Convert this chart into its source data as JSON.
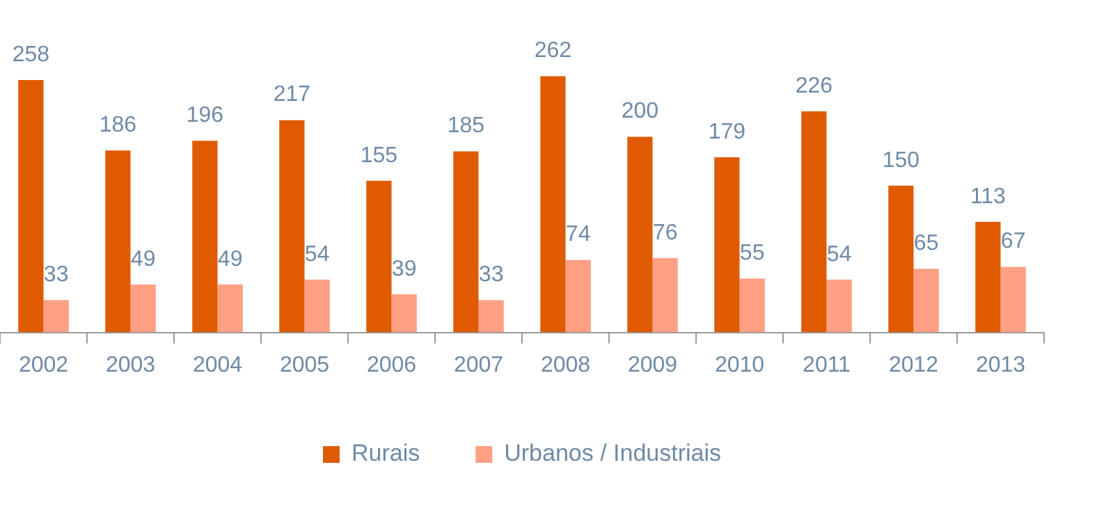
{
  "chart_data": {
    "type": "bar",
    "categories": [
      "2002",
      "2003",
      "2004",
      "2005",
      "2006",
      "2007",
      "2008",
      "2009",
      "2010",
      "2011",
      "2012",
      "2013"
    ],
    "series": [
      {
        "name": "Rurais",
        "color": "#e05a00",
        "values": [
          258,
          186,
          196,
          217,
          155,
          185,
          262,
          200,
          179,
          226,
          150,
          113
        ]
      },
      {
        "name": "Urbanos / Industriais",
        "color": "#ff9f84",
        "values": [
          33,
          49,
          49,
          54,
          39,
          33,
          74,
          76,
          55,
          54,
          65,
          67
        ]
      }
    ],
    "data_labels": true,
    "grid": false,
    "legend": "bottom"
  }
}
